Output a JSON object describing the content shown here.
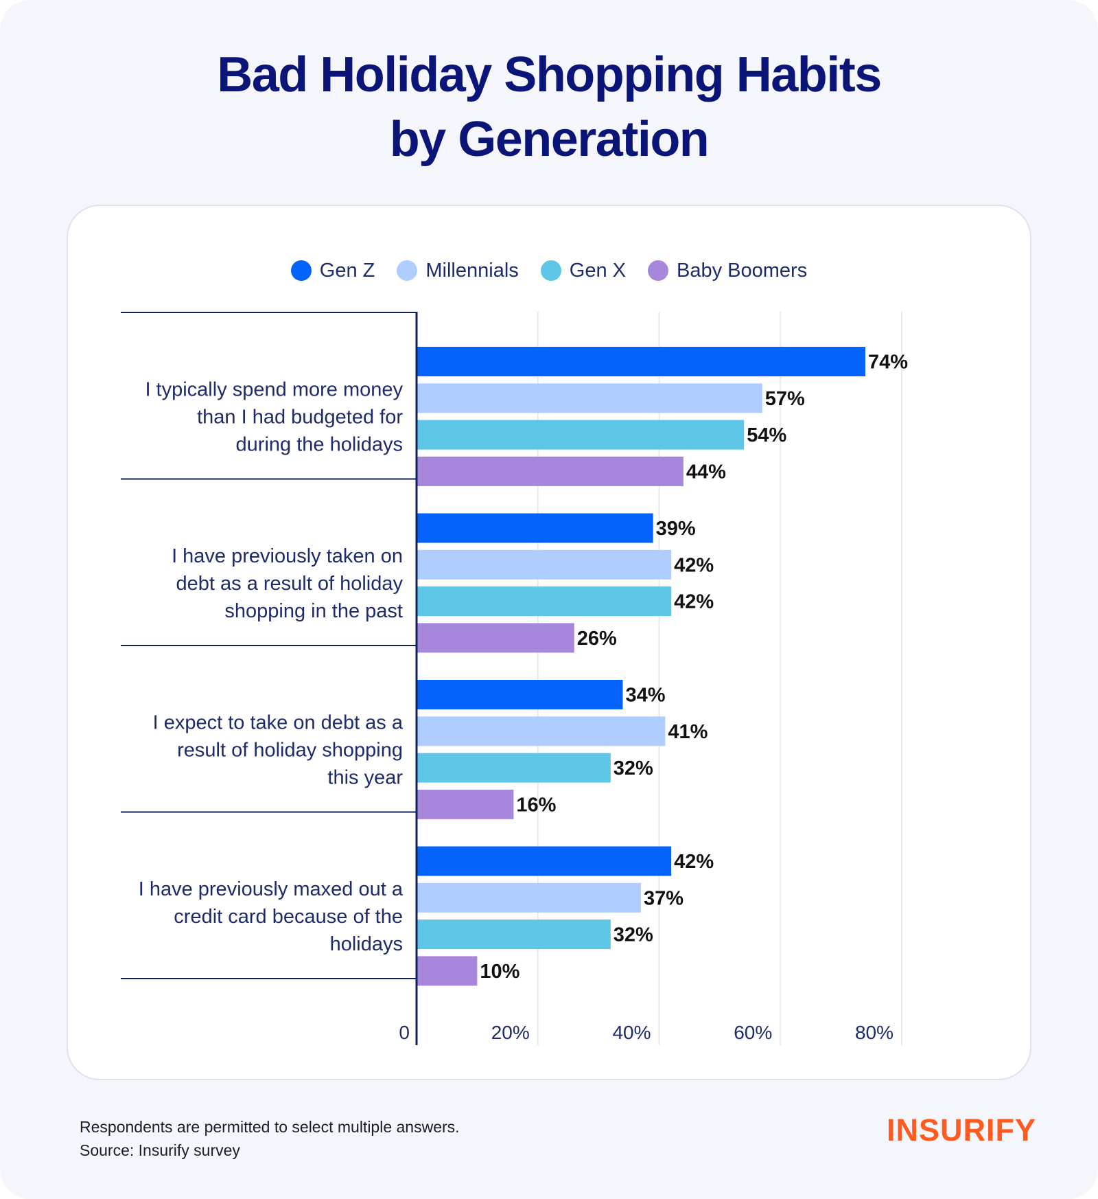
{
  "title_line1": "Bad Holiday Shopping Habits",
  "title_line2": "by Generation",
  "footnote": {
    "line1": "Respondents are permitted to select multiple answers.",
    "line2": "Source: Insurify survey"
  },
  "logo": "INSURIFY",
  "colors": {
    "gen_z": "#0463fb",
    "millennials": "#afcdff",
    "gen_x": "#5dc6e6",
    "baby_boomers": "#a787dc",
    "title": "#0a1577",
    "axis": "#0f2356",
    "logo": "#ff5a1f"
  },
  "chart_data": {
    "type": "bar",
    "orientation": "horizontal",
    "title": "Bad Holiday Shopping Habits by Generation",
    "categories": [
      "I typically spend more money than I had budgeted for during the holidays",
      "I have previously taken on debt as a result of holiday shopping in the past",
      "I expect to take on debt as a result of holiday shopping this year",
      "I have previously maxed out a credit card because of the holidays"
    ],
    "category_lines": [
      [
        "I typically spend more money",
        "than I had budgeted for",
        "during the holidays"
      ],
      [
        "I have previously taken on",
        "debt as a result of holiday",
        "shopping in the past"
      ],
      [
        "I expect to take on debt as a",
        "result of holiday shopping",
        "this year"
      ],
      [
        "I have previously maxed out a",
        "credit card because of the",
        "holidays"
      ]
    ],
    "series": [
      {
        "name": "Gen Z",
        "color": "#0463fb",
        "values": [
          74,
          39,
          34,
          42
        ],
        "labels": [
          "74%",
          "39%",
          "34%",
          "42%"
        ]
      },
      {
        "name": "Millennials",
        "color": "#afcdff",
        "values": [
          57,
          42,
          41,
          37
        ],
        "labels": [
          "57%",
          "42%",
          "41%",
          "37%"
        ]
      },
      {
        "name": "Gen X",
        "color": "#5dc6e6",
        "values": [
          54,
          42,
          32,
          32
        ],
        "labels": [
          "54%",
          "42%",
          "32%",
          "32%"
        ]
      },
      {
        "name": "Baby Boomers",
        "color": "#a787dc",
        "values": [
          44,
          26,
          16,
          10
        ],
        "labels": [
          "44%",
          "26%",
          "16%",
          "10%"
        ]
      }
    ],
    "xlim": [
      0,
      80
    ],
    "xticks": [
      0,
      20,
      40,
      60,
      80
    ],
    "xtick_labels": [
      "0",
      "20%",
      "40%",
      "60%",
      "80%"
    ],
    "grid": true,
    "legend_position": "top"
  }
}
